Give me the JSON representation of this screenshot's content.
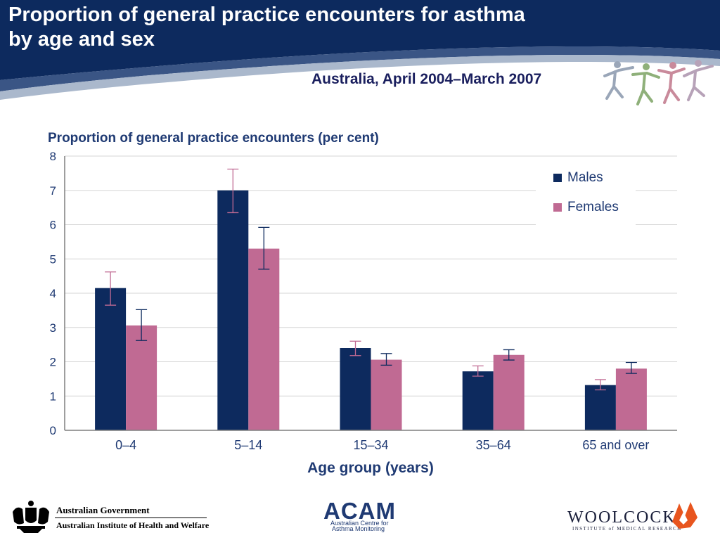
{
  "header": {
    "title_line1": "Proportion of general practice encounters for asthma",
    "title_line2": "by age and sex",
    "subtitle": "Australia, April 2004–March 2007",
    "bg_color": "#0d2a5e"
  },
  "chart_data": {
    "type": "bar",
    "title": "Proportion of general practice encounters (per cent)",
    "xlabel": "Age group (years)",
    "ylabel": "Proportion of general practice encounters (per cent)",
    "categories": [
      "0–4",
      "5–14",
      "15–34",
      "35–64",
      "65 and over"
    ],
    "series": [
      {
        "name": "Males",
        "color": "#0d2a5e",
        "values": [
          4.15,
          7.0,
          2.4,
          1.72,
          1.32
        ],
        "ci_low": [
          3.65,
          6.35,
          2.18,
          1.58,
          1.18
        ],
        "ci_high": [
          4.62,
          7.62,
          2.6,
          1.88,
          1.48
        ]
      },
      {
        "name": "Females",
        "color": "#c06a93",
        "values": [
          3.06,
          5.3,
          2.06,
          2.2,
          1.8
        ],
        "ci_low": [
          2.62,
          4.7,
          1.9,
          2.05,
          1.66
        ],
        "ci_high": [
          3.52,
          5.92,
          2.24,
          2.35,
          1.98
        ]
      }
    ],
    "ylim": [
      0,
      8
    ],
    "yticks": [
      "0",
      "1",
      "2",
      "3",
      "4",
      "5",
      "6",
      "7",
      "8"
    ],
    "grid": true,
    "legend_position": "top-right"
  },
  "footer": {
    "aihw_line1": "Australian Government",
    "aihw_line2": "Australian Institute of Health and Welfare",
    "acam_name": "ACAM",
    "acam_line1": "Australian Centre for",
    "acam_line2": "Asthma Monitoring",
    "woolcock_name": "WOOLCOCK",
    "woolcock_sub": "INSTITUTE of MEDICAL RESEARCH"
  }
}
